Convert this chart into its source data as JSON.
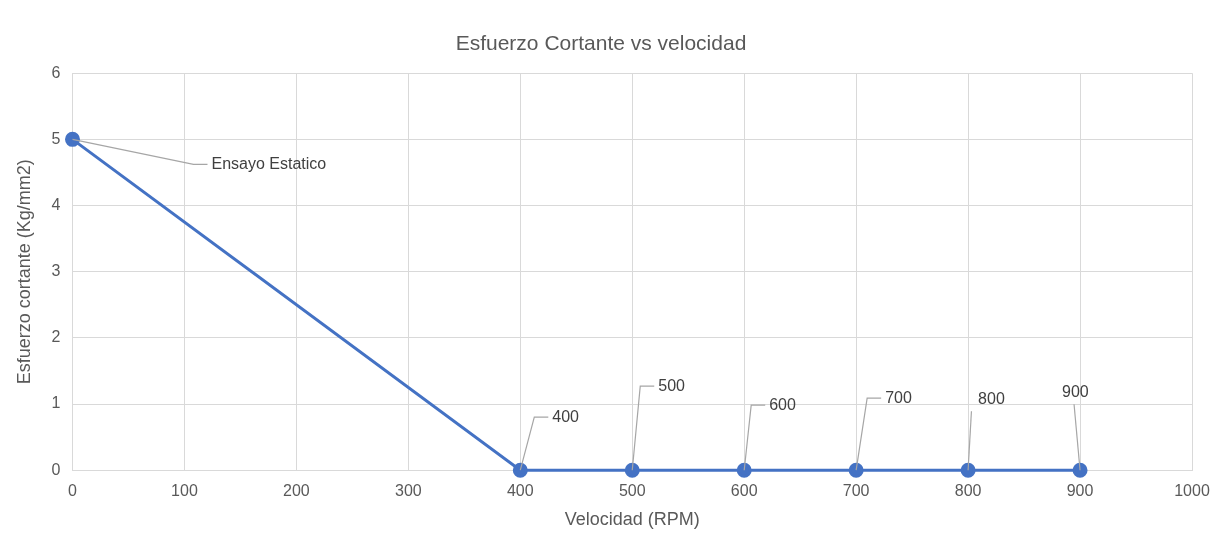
{
  "chart_data": {
    "type": "line",
    "title": "Esfuerzo Cortante vs velocidad",
    "xlabel": "Velocidad (RPM)",
    "ylabel": "Esfuerzo cortante (Kg/mm2)",
    "x": [
      0,
      400,
      500,
      600,
      700,
      800,
      900
    ],
    "series": [
      {
        "color": "#4472c4",
        "values": [
          5,
          0,
          0,
          0,
          0,
          0,
          0
        ]
      }
    ],
    "xlim": [
      0,
      1000
    ],
    "xticks": [
      0,
      100,
      200,
      300,
      400,
      500,
      600,
      700,
      800,
      900,
      1000
    ],
    "ylim": [
      0,
      6
    ],
    "yticks": [
      0,
      1,
      2,
      3,
      4,
      5,
      6
    ],
    "grid": true,
    "legend": false,
    "marker": "circle",
    "line_style": "solid",
    "annotations": [
      {
        "text": "Ensayo Estatico",
        "x": 0,
        "y": 5
      },
      {
        "text": "400",
        "x": 400,
        "y": 0
      },
      {
        "text": "500",
        "x": 500,
        "y": 0
      },
      {
        "text": "600",
        "x": 600,
        "y": 0
      },
      {
        "text": "700",
        "x": 700,
        "y": 0
      },
      {
        "text": "800",
        "x": 800,
        "y": 0
      },
      {
        "text": "900",
        "x": 900,
        "y": 0
      }
    ]
  }
}
